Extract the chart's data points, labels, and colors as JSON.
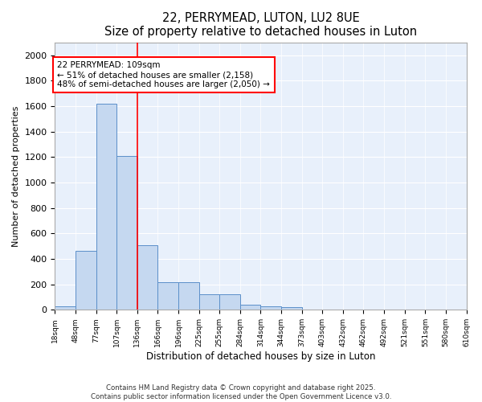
{
  "title": "22, PERRYMEAD, LUTON, LU2 8UE",
  "subtitle": "Size of property relative to detached houses in Luton",
  "xlabel": "Distribution of detached houses by size in Luton",
  "ylabel": "Number of detached properties",
  "bar_values": [
    30,
    460,
    1620,
    1210,
    510,
    215,
    215,
    125,
    125,
    40,
    25,
    20,
    0,
    0,
    0,
    0,
    0,
    0,
    0,
    0
  ],
  "categories": [
    "18sqm",
    "48sqm",
    "77sqm",
    "107sqm",
    "136sqm",
    "166sqm",
    "196sqm",
    "225sqm",
    "255sqm",
    "284sqm",
    "314sqm",
    "344sqm",
    "373sqm",
    "403sqm",
    "432sqm",
    "462sqm",
    "492sqm",
    "521sqm",
    "551sqm",
    "580sqm",
    "610sqm"
  ],
  "bar_color": "#c5d8f0",
  "bar_edge_color": "#5b8fc9",
  "red_line_index": 3,
  "annotation_line1": "22 PERRYMEAD: 109sqm",
  "annotation_line2": "← 51% of detached houses are smaller (2,158)",
  "annotation_line3": "48% of semi-detached houses are larger (2,050) →",
  "ylim": [
    0,
    2100
  ],
  "yticks": [
    0,
    200,
    400,
    600,
    800,
    1000,
    1200,
    1400,
    1600,
    1800,
    2000
  ],
  "footer_line1": "Contains HM Land Registry data © Crown copyright and database right 2025.",
  "footer_line2": "Contains public sector information licensed under the Open Government Licence v3.0.",
  "bg_color": "#e8f0fb",
  "grid_color": "#ffffff",
  "font": "DejaVu Sans"
}
